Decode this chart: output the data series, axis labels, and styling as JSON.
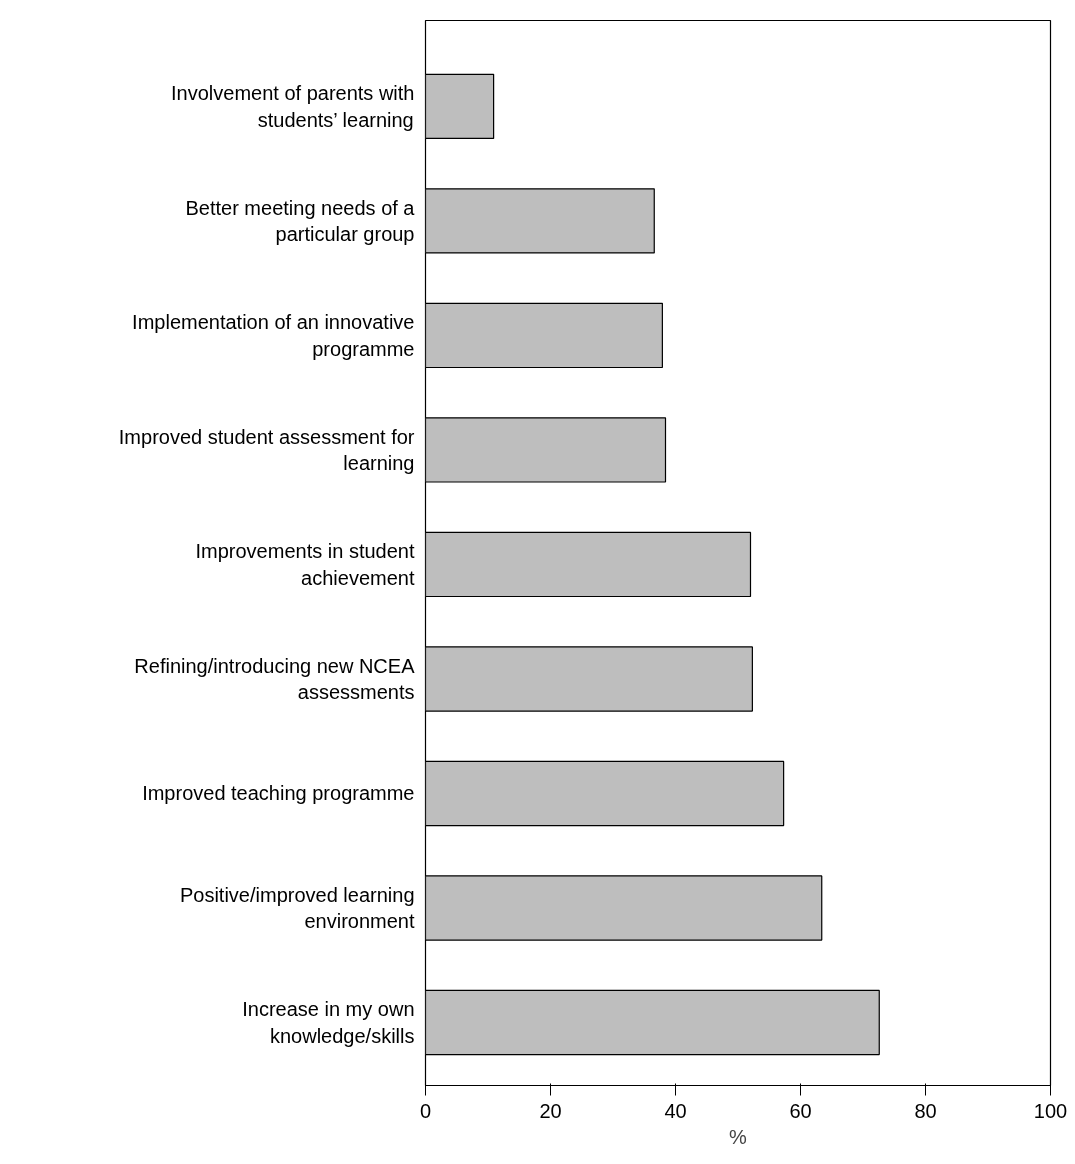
{
  "chart_data": {
    "type": "bar",
    "orientation": "horizontal",
    "xlabel": "%",
    "categories": [
      "Involvement of parents with\nstudents’ learning",
      "Better meeting needs of a\nparticular group",
      "Implementation of an innovative\nprogramme",
      "Improved student assessment for\nlearning",
      "Improvements in student\nachievement",
      "Refining/introducing new NCEA\nassessments",
      "Improved teaching programme",
      "Positive/improved learning\nenvironment",
      "Increase in my own\nknowledge/skills"
    ],
    "values": [
      10.9,
      36.6,
      37.9,
      38.4,
      52.0,
      52.3,
      57.3,
      63.4,
      72.6
    ],
    "color": "#bebebe",
    "xlim": [
      0,
      100
    ],
    "xticks": [
      0,
      20,
      40,
      60,
      80,
      100
    ],
    "grid": false
  }
}
